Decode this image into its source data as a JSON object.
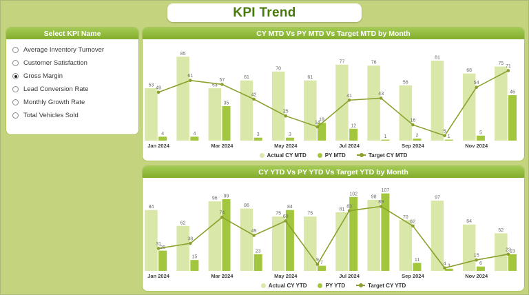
{
  "header": {
    "title": "KPI Trend"
  },
  "kpi_selector": {
    "title": "Select KPI Name",
    "options": [
      {
        "label": "Average Inventory Turnover",
        "selected": false
      },
      {
        "label": "Customer Satisfaction",
        "selected": false
      },
      {
        "label": "Gross Margin",
        "selected": true
      },
      {
        "label": "Lead Conversion Rate",
        "selected": false
      },
      {
        "label": "Monthly Growth Rate",
        "selected": false
      },
      {
        "label": "Total Vehicles Sold",
        "selected": false
      }
    ]
  },
  "colors": {
    "page_bg": "#c3d37e",
    "panel_border": "#a9c45d",
    "title_bar_top": "#a3cb55",
    "title_bar_bottom": "#83ad2c",
    "title_bar_text": "#ffffff",
    "header_title_text": "#47780a",
    "bar_light": "#d9e7a9",
    "bar_dark": "#a2c73e",
    "line": "#8aa12e",
    "value_label": "#6a6a6a",
    "axis_label": "#3f3f3f"
  },
  "chart_data": [
    {
      "type": "combo-bar-line",
      "title": "CY MTD Vs PY MTD Vs Target MTD by Month",
      "categories": [
        "Jan 2024",
        "Feb 2024",
        "Mar 2024",
        "Apr 2024",
        "May 2024",
        "Jun 2024",
        "Jul 2024",
        "Aug 2024",
        "Sep 2024",
        "Oct 2024",
        "Nov 2024",
        "Dec 2024"
      ],
      "x_tick_labels": [
        "Jan 2024",
        "Mar 2024",
        "May 2024",
        "Jul 2024",
        "Sep 2024",
        "Nov 2024"
      ],
      "series": [
        {
          "name": "Actual CY MTD",
          "type": "bar",
          "values": [
            53,
            85,
            53,
            61,
            70,
            61,
            77,
            76,
            56,
            81,
            68,
            75
          ]
        },
        {
          "name": "PY MTD",
          "type": "bar",
          "values": [
            4,
            4,
            35,
            3,
            3,
            18,
            12,
            1,
            2,
            1,
            5,
            46
          ]
        },
        {
          "name": "Target CY MTD",
          "type": "line",
          "values": [
            49,
            61,
            57,
            42,
            25,
            14,
            41,
            43,
            16,
            5,
            54,
            71
          ]
        }
      ],
      "ylim": [
        0,
        95
      ],
      "grid": false,
      "legend_position": "bottom"
    },
    {
      "type": "combo-bar-line",
      "title": "CY YTD Vs PY YTD Vs Target YTD by Month",
      "categories": [
        "Jan 2024",
        "Feb 2024",
        "Mar 2024",
        "Apr 2024",
        "May 2024",
        "Jun 2024",
        "Jul 2024",
        "Aug 2024",
        "Sep 2024",
        "Oct 2024",
        "Nov 2024",
        "Dec 2024"
      ],
      "x_tick_labels": [
        "Jan 2024",
        "Mar 2024",
        "May 2024",
        "Jul 2024",
        "Sep 2024",
        "Nov 2024"
      ],
      "series": [
        {
          "name": "Actual CY YTD",
          "type": "bar",
          "values": [
            84,
            62,
            96,
            86,
            75,
            75,
            81,
            98,
            70,
            97,
            64,
            52
          ]
        },
        {
          "name": "PY YTD",
          "type": "bar",
          "values": [
            28,
            15,
            99,
            23,
            84,
            7,
            102,
            107,
            11,
            3,
            6,
            23
          ]
        },
        {
          "name": "Target CY YTD",
          "type": "line",
          "values": [
            31,
            38,
            74,
            49,
            69,
            9,
            83,
            89,
            62,
            4,
            15,
            23
          ]
        }
      ],
      "ylim": [
        0,
        118
      ],
      "grid": false,
      "legend_position": "bottom"
    }
  ]
}
